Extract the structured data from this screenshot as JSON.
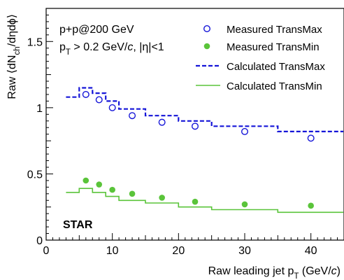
{
  "chart_data": {
    "type": "scatter",
    "xlabel": "Raw leading jet p_T (GeV/c)",
    "ylabel": "Raw ⟨dN_ch/dηdϕ⟩",
    "xlim": [
      0,
      45
    ],
    "ylim": [
      0,
      1.75
    ],
    "x_ticks": [
      0,
      10,
      20,
      30,
      40
    ],
    "y_ticks": [
      0,
      0.5,
      1,
      1.5
    ],
    "x_tick_labels": [
      "0",
      "10",
      "20",
      "30",
      "40"
    ],
    "y_tick_labels": [
      "0",
      "0.5",
      "1",
      "1.5"
    ],
    "grid": false,
    "legend_position": "top-right",
    "annotations": {
      "system": "p+p@200 GeV",
      "cut_pt": "p_T > 0.2 GeV/c, |η|<1",
      "experiment": "STAR"
    },
    "series": [
      {
        "name": "Measured TransMax",
        "kind": "markers",
        "marker": "open-circle",
        "color": "#1515d8",
        "x": [
          6,
          8,
          10,
          13,
          17.5,
          22.5,
          30,
          40
        ],
        "y": [
          1.1,
          1.06,
          1.0,
          0.94,
          0.89,
          0.86,
          0.82,
          0.77
        ]
      },
      {
        "name": "Measured TransMin",
        "kind": "markers",
        "marker": "filled-circle",
        "color": "#5ac43a",
        "x": [
          6,
          8,
          10,
          13,
          17.5,
          22.5,
          30,
          40
        ],
        "y": [
          0.45,
          0.42,
          0.38,
          0.35,
          0.32,
          0.29,
          0.27,
          0.26
        ]
      },
      {
        "name": "Calculated TransMax",
        "kind": "step",
        "style": "dashed",
        "color": "#1515d8",
        "edges": [
          3,
          5,
          7,
          9,
          11,
          15,
          20,
          25,
          35,
          45
        ],
        "values": [
          1.08,
          1.15,
          1.11,
          1.05,
          0.99,
          0.94,
          0.9,
          0.86,
          0.82
        ]
      },
      {
        "name": "Calculated TransMin",
        "kind": "step",
        "style": "solid",
        "color": "#5ac43a",
        "edges": [
          3,
          5,
          7,
          9,
          11,
          15,
          20,
          25,
          35,
          45
        ],
        "values": [
          0.36,
          0.39,
          0.36,
          0.33,
          0.3,
          0.28,
          0.25,
          0.23,
          0.21
        ]
      }
    ]
  }
}
